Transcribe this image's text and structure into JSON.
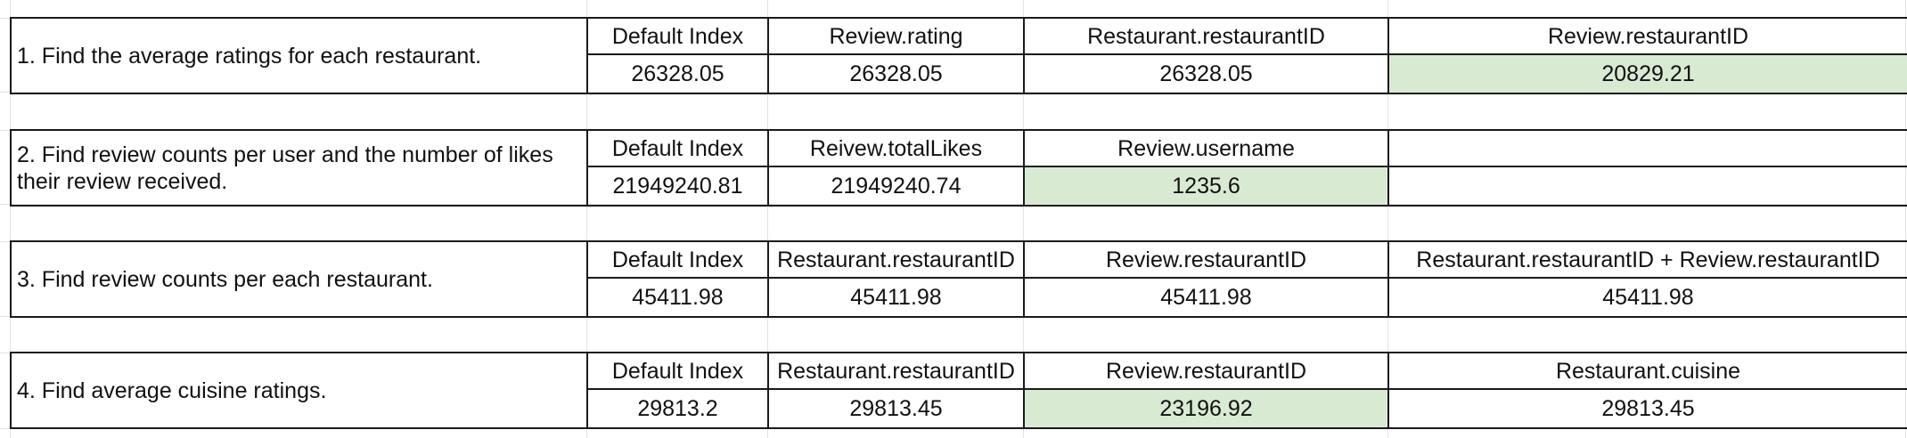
{
  "colors": {
    "highlight": "#d9ead3",
    "border": "#1a1a1a",
    "gridline": "#e3e3e3"
  },
  "tables": [
    {
      "question": "1. Find the average ratings for each restaurant.",
      "headers": [
        "Default Index",
        "Review.rating",
        "Restaurant.restaurantID",
        "Review.restaurantID"
      ],
      "values": [
        "26328.05",
        "26328.05",
        "26328.05",
        "20829.21"
      ],
      "highlight_index": 3
    },
    {
      "question": "2. Find review counts per user and the number of likes their review received.",
      "headers": [
        "Default Index",
        "Reivew.totalLikes",
        "Review.username",
        ""
      ],
      "values": [
        "21949240.81",
        "21949240.74",
        "1235.6",
        ""
      ],
      "highlight_index": 2
    },
    {
      "question": "3. Find review counts per each restaurant.",
      "headers": [
        "Default Index",
        "Restaurant.restaurantID",
        "Review.restaurantID",
        "Restaurant.restaurantID +  Review.restaurantID"
      ],
      "values": [
        "45411.98",
        "45411.98",
        "45411.98",
        "45411.98"
      ],
      "highlight_index": -1
    },
    {
      "question": "4. Find average cuisine ratings.",
      "headers": [
        "Default Index",
        "Restaurant.restaurantID",
        "Review.restaurantID",
        "Restaurant.cuisine"
      ],
      "values": [
        "29813.2",
        "29813.45",
        "23196.92",
        "29813.45"
      ],
      "highlight_index": 2
    }
  ]
}
